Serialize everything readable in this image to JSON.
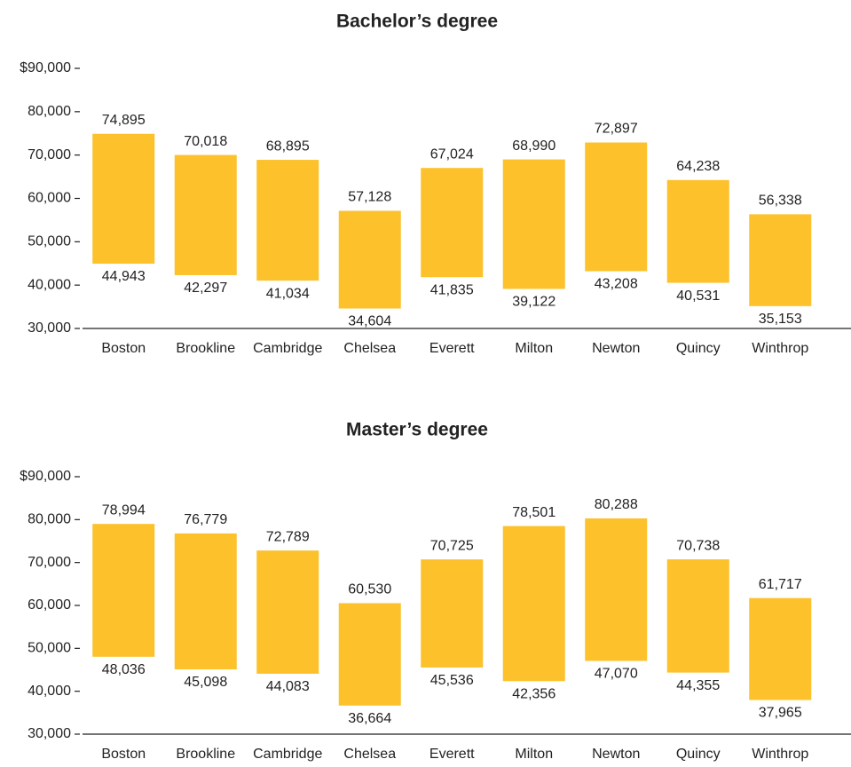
{
  "chart_data": [
    {
      "type": "floating_bar",
      "title": "Bachelor’s degree",
      "categories": [
        "Boston",
        "Brookline",
        "Cambridge",
        "Chelsea",
        "Everett",
        "Milton",
        "Newton",
        "Quincy",
        "Winthrop"
      ],
      "values": [
        [
          44943,
          74895
        ],
        [
          42297,
          70018
        ],
        [
          41034,
          68895
        ],
        [
          34604,
          57128
        ],
        [
          41835,
          67024
        ],
        [
          39122,
          68990
        ],
        [
          43208,
          72897
        ],
        [
          40531,
          64238
        ],
        [
          35153,
          56338
        ]
      ],
      "value_labels": [
        [
          "44,943",
          "74,895"
        ],
        [
          "42,297",
          "70,018"
        ],
        [
          "41,034",
          "68,895"
        ],
        [
          "34,604",
          "57,128"
        ],
        [
          "41,835",
          "67,024"
        ],
        [
          "39,122",
          "68,990"
        ],
        [
          "43,208",
          "72,897"
        ],
        [
          "40,531",
          "64,238"
        ],
        [
          "35,153",
          "56,338"
        ]
      ],
      "color": "#fcc12b",
      "grid": false,
      "ylim": [
        30000,
        90000
      ],
      "yticks": [
        {
          "value": 30000,
          "label": "30,000"
        },
        {
          "value": 40000,
          "label": "40,000"
        },
        {
          "value": 50000,
          "label": "50,000"
        },
        {
          "value": 60000,
          "label": "60,000"
        },
        {
          "value": 70000,
          "label": "70,000"
        },
        {
          "value": 80000,
          "label": "80,000"
        },
        {
          "value": 90000,
          "label": "$90,000"
        }
      ]
    },
    {
      "type": "floating_bar",
      "title": "Master’s degree",
      "categories": [
        "Boston",
        "Brookline",
        "Cambridge",
        "Chelsea",
        "Everett",
        "Milton",
        "Newton",
        "Quincy",
        "Winthrop"
      ],
      "values": [
        [
          48036,
          78994
        ],
        [
          45098,
          76779
        ],
        [
          44083,
          72789
        ],
        [
          36664,
          60530
        ],
        [
          45536,
          70725
        ],
        [
          42356,
          78501
        ],
        [
          47070,
          80288
        ],
        [
          44355,
          70738
        ],
        [
          37965,
          61717
        ]
      ],
      "value_labels": [
        [
          "48,036",
          "78,994"
        ],
        [
          "45,098",
          "76,779"
        ],
        [
          "44,083",
          "72,789"
        ],
        [
          "36,664",
          "60,530"
        ],
        [
          "45,536",
          "70,725"
        ],
        [
          "42,356",
          "78,501"
        ],
        [
          "47,070",
          "80,288"
        ],
        [
          "44,355",
          "70,738"
        ],
        [
          "37,965",
          "61,717"
        ]
      ],
      "color": "#fcc12b",
      "grid": false,
      "ylim": [
        30000,
        90000
      ],
      "yticks": [
        {
          "value": 30000,
          "label": "30,000"
        },
        {
          "value": 40000,
          "label": "40,000"
        },
        {
          "value": 50000,
          "label": "50,000"
        },
        {
          "value": 60000,
          "label": "60,000"
        },
        {
          "value": 70000,
          "label": "70,000"
        },
        {
          "value": 80000,
          "label": "80,000"
        },
        {
          "value": 90000,
          "label": "$90,000"
        }
      ]
    }
  ]
}
